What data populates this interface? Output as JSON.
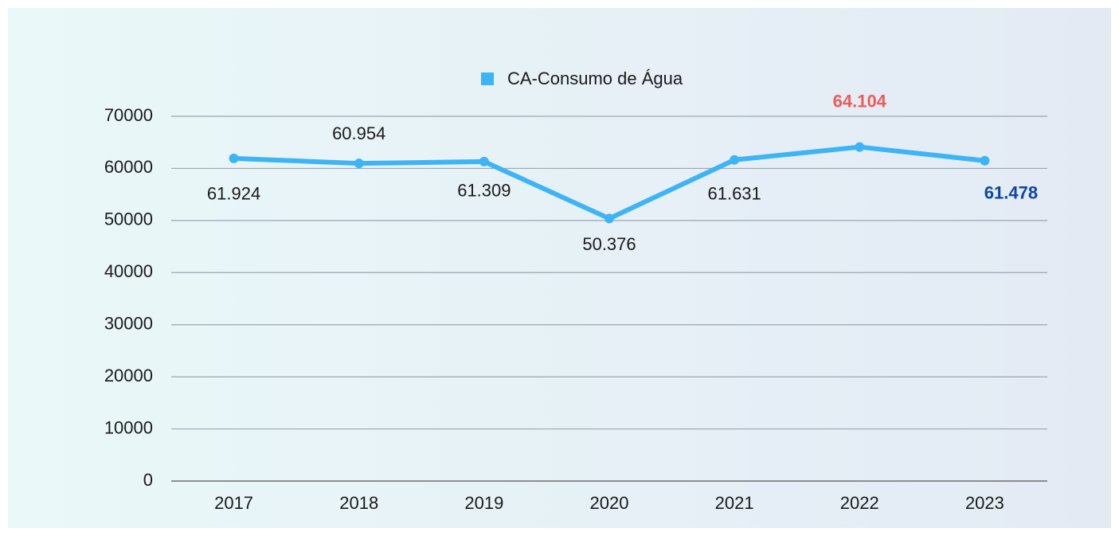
{
  "chart_data": {
    "type": "line",
    "categories": [
      "2017",
      "2018",
      "2019",
      "2020",
      "2021",
      "2022",
      "2023"
    ],
    "series": [
      {
        "name": "CA-Consumo de Água",
        "color": "#3db4f5",
        "values": [
          61924,
          60954,
          61309,
          50376,
          61631,
          64104,
          61478
        ],
        "value_labels": [
          "61.924",
          "60.954",
          "61.309",
          "50.376",
          "61.631",
          "64.104",
          "61.478"
        ],
        "value_label_colors": [
          "#1a1a1a",
          "#1a1a1a",
          "#1a1a1a",
          "#1a1a1a",
          "#1a1a1a",
          "#f05a5a",
          "#0d47a1"
        ]
      }
    ],
    "ylim": [
      0,
      70000
    ],
    "yticks": [
      0,
      10000,
      20000,
      30000,
      40000,
      50000,
      60000,
      70000
    ],
    "grid": true,
    "legend": "top"
  }
}
